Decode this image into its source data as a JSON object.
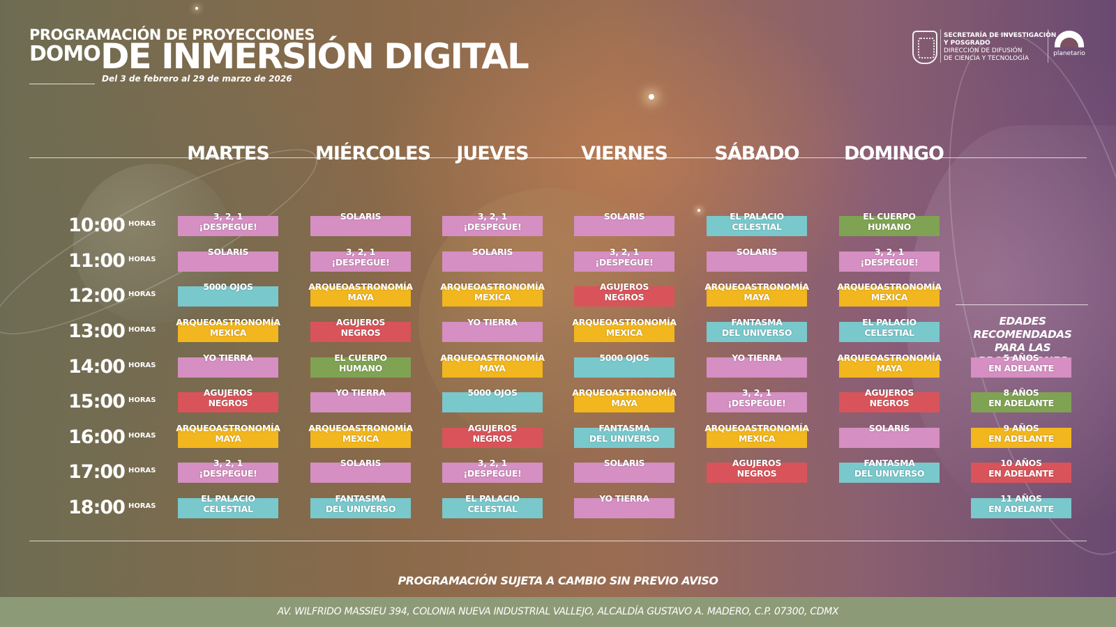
{
  "header": {
    "line1": "PROGRAMACIÓN DE PROYECCIONES",
    "line2a": "DOMO",
    "line2b": "DE INMERSIÓN DIGITAL",
    "date_range": "Del 3 de febrero al 29 de marzo de 2026"
  },
  "logos": {
    "institution": [
      "SECRETARÍA DE INVESTIGACIÓN",
      "Y POSGRADO",
      "DIRECCIÓN DE DIFUSIÓN",
      "DE CIENCIA Y TECNOLOGÍA"
    ],
    "planetarium": "planetario"
  },
  "days": [
    "MARTES",
    "MIÉRCOLES",
    "JUEVES",
    "VIERNES",
    "SÁBADO",
    "DOMINGO"
  ],
  "hours_label": "HORAS",
  "times": [
    "10:00",
    "11:00",
    "12:00",
    "13:00",
    "14:00",
    "15:00",
    "16:00",
    "17:00",
    "18:00"
  ],
  "colors": {
    "pink": "#d58fc2",
    "yellow": "#f2b61e",
    "teal": "#79c8cc",
    "red": "#d9545a",
    "green": "#7fa352",
    "footer": "#8d9a77"
  },
  "schedule": [
    [
      {
        "l1": "3, 2, 1",
        "l2": "¡DESPEGUE!",
        "color": "pink"
      },
      {
        "l1": "SOLARIS",
        "l2": "",
        "color": "pink"
      },
      {
        "l1": "5000 OJOS",
        "l2": "",
        "color": "teal"
      },
      {
        "l1": "ARQUEOASTRONOMÍA",
        "l2": "MEXICA",
        "color": "yellow"
      },
      {
        "l1": "YO TIERRA",
        "l2": "",
        "color": "pink"
      },
      {
        "l1": "AGUJEROS",
        "l2": "NEGROS",
        "color": "red"
      },
      {
        "l1": "ARQUEOASTRONOMÍA",
        "l2": "MAYA",
        "color": "yellow"
      },
      {
        "l1": "3, 2, 1",
        "l2": "¡DESPEGUE!",
        "color": "pink"
      },
      {
        "l1": "EL PALACIO",
        "l2": "CELESTIAL",
        "color": "teal"
      }
    ],
    [
      {
        "l1": "SOLARIS",
        "l2": "",
        "color": "pink"
      },
      {
        "l1": "3, 2, 1",
        "l2": "¡DESPEGUE!",
        "color": "pink"
      },
      {
        "l1": "ARQUEOASTRONOMÍA",
        "l2": "MAYA",
        "color": "yellow"
      },
      {
        "l1": "AGUJEROS",
        "l2": "NEGROS",
        "color": "red"
      },
      {
        "l1": "EL CUERPO",
        "l2": "HUMANO",
        "color": "green"
      },
      {
        "l1": "YO TIERRA",
        "l2": "",
        "color": "pink"
      },
      {
        "l1": "ARQUEOASTRONOMÍA",
        "l2": "MEXICA",
        "color": "yellow"
      },
      {
        "l1": "SOLARIS",
        "l2": "",
        "color": "pink"
      },
      {
        "l1": "FANTASMA",
        "l2": "DEL UNIVERSO",
        "color": "teal"
      }
    ],
    [
      {
        "l1": "3, 2, 1",
        "l2": "¡DESPEGUE!",
        "color": "pink"
      },
      {
        "l1": "SOLARIS",
        "l2": "",
        "color": "pink"
      },
      {
        "l1": "ARQUEOASTRONOMÍA",
        "l2": "MEXICA",
        "color": "yellow"
      },
      {
        "l1": "YO TIERRA",
        "l2": "",
        "color": "pink"
      },
      {
        "l1": "ARQUEOASTRONOMÍA",
        "l2": "MAYA",
        "color": "yellow"
      },
      {
        "l1": "5000 OJOS",
        "l2": "",
        "color": "teal"
      },
      {
        "l1": "AGUJEROS",
        "l2": "NEGROS",
        "color": "red"
      },
      {
        "l1": "3, 2, 1",
        "l2": "¡DESPEGUE!",
        "color": "pink"
      },
      {
        "l1": "EL PALACIO",
        "l2": "CELESTIAL",
        "color": "teal"
      }
    ],
    [
      {
        "l1": "SOLARIS",
        "l2": "",
        "color": "pink"
      },
      {
        "l1": "3, 2, 1",
        "l2": "¡DESPEGUE!",
        "color": "pink"
      },
      {
        "l1": "AGUJEROS",
        "l2": "NEGROS",
        "color": "red"
      },
      {
        "l1": "ARQUEOASTRONOMÍA",
        "l2": "MEXICA",
        "color": "yellow"
      },
      {
        "l1": "5000 OJOS",
        "l2": "",
        "color": "teal"
      },
      {
        "l1": "ARQUEOASTRONOMÍA",
        "l2": "MAYA",
        "color": "yellow"
      },
      {
        "l1": "FANTASMA",
        "l2": "DEL UNIVERSO",
        "color": "teal"
      },
      {
        "l1": "SOLARIS",
        "l2": "",
        "color": "pink"
      },
      {
        "l1": "YO TIERRA",
        "l2": "",
        "color": "pink"
      }
    ],
    [
      {
        "l1": "EL PALACIO",
        "l2": "CELESTIAL",
        "color": "teal"
      },
      {
        "l1": "SOLARIS",
        "l2": "",
        "color": "pink"
      },
      {
        "l1": "ARQUEOASTRONOMÍA",
        "l2": "MAYA",
        "color": "yellow"
      },
      {
        "l1": "FANTASMA",
        "l2": "DEL UNIVERSO",
        "color": "teal"
      },
      {
        "l1": "YO TIERRA",
        "l2": "",
        "color": "pink"
      },
      {
        "l1": "3, 2, 1",
        "l2": "¡DESPEGUE!",
        "color": "pink"
      },
      {
        "l1": "ARQUEOASTRONOMÍA",
        "l2": "MEXICA",
        "color": "yellow"
      },
      {
        "l1": "AGUJEROS",
        "l2": "NEGROS",
        "color": "red"
      },
      null
    ],
    [
      {
        "l1": "EL CUERPO",
        "l2": "HUMANO",
        "color": "green"
      },
      {
        "l1": "3, 2, 1",
        "l2": "¡DESPEGUE!",
        "color": "pink"
      },
      {
        "l1": "ARQUEOASTRONOMÍA",
        "l2": "MEXICA",
        "color": "yellow"
      },
      {
        "l1": "EL PALACIO",
        "l2": "CELESTIAL",
        "color": "teal"
      },
      {
        "l1": "ARQUEOASTRONOMÍA",
        "l2": "MAYA",
        "color": "yellow"
      },
      {
        "l1": "AGUJEROS",
        "l2": "NEGROS",
        "color": "red"
      },
      {
        "l1": "SOLARIS",
        "l2": "",
        "color": "pink"
      },
      {
        "l1": "FANTASMA",
        "l2": "DEL UNIVERSO",
        "color": "teal"
      },
      null
    ]
  ],
  "ages": {
    "title_line1": "EDADES RECOMENDADAS",
    "title_line2": "PARA LAS PROYECCIONES",
    "items": [
      {
        "l1": "5 AÑOS",
        "l2": "EN ADELANTE",
        "color": "pink"
      },
      {
        "l1": "8 AÑOS",
        "l2": "EN ADELANTE",
        "color": "green"
      },
      {
        "l1": "9 AÑOS",
        "l2": "EN ADELANTE",
        "color": "yellow"
      },
      {
        "l1": "10 AÑOS",
        "l2": "EN ADELANTE",
        "color": "red"
      },
      {
        "l1": "11 AÑOS",
        "l2": "EN ADELANTE",
        "color": "teal"
      }
    ]
  },
  "notice": "PROGRAMACIÓN SUJETA A  CAMBIO SIN PREVIO AVISO",
  "footer": "AV. WILFRIDO MASSIEU 394, COLONIA NUEVA INDUSTRIAL VALLEJO, ALCALDÍA GUSTAVO A. MADERO, C.P. 07300, CDMX"
}
